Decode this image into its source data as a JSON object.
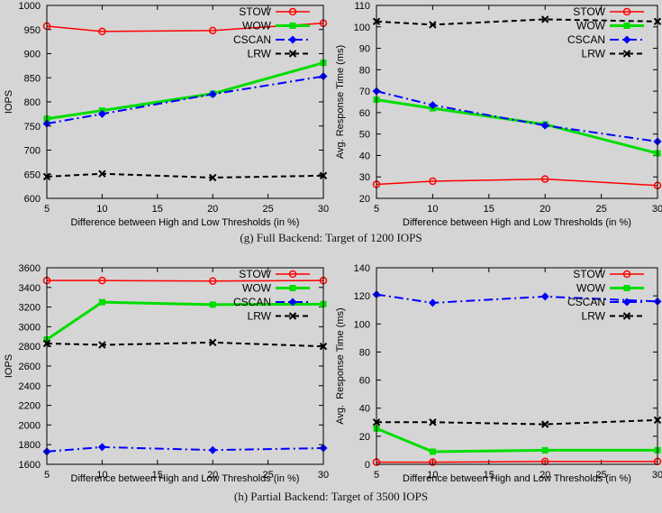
{
  "figure": {
    "background": "#d5d5d5",
    "captions": {
      "g": "(g) Full Backend: Target of 1200 IOPS",
      "h": "(h) Partial Backend: Target of 3500 IOPS"
    }
  },
  "colors": {
    "STOW": "#ff0000",
    "WOW": "#00dd00",
    "CSCAN": "#0000ff",
    "LRW": "#000000"
  },
  "chart_data": [
    {
      "id": "g-iops",
      "type": "line",
      "title": "",
      "xlabel": "Difference between High and Low Thresholds (in %)",
      "ylabel": "IOPS",
      "x": [
        5,
        10,
        20,
        30
      ],
      "xlim": [
        5,
        30
      ],
      "xticks": [
        5,
        10,
        15,
        20,
        25,
        30
      ],
      "ylim": [
        600,
        1000
      ],
      "yticks": [
        600,
        650,
        700,
        750,
        800,
        850,
        900,
        950,
        1000
      ],
      "grid": false,
      "legend_position": "top-right",
      "series": [
        {
          "name": "STOW",
          "values": [
            957,
            946,
            948,
            963
          ],
          "color": "#ff0000",
          "marker": "circle-open",
          "dash": "solid",
          "width": 1.5
        },
        {
          "name": "WOW",
          "values": [
            765,
            782,
            817,
            881
          ],
          "color": "#00dd00",
          "marker": "square",
          "dash": "solid",
          "width": 3
        },
        {
          "name": "CSCAN",
          "values": [
            755,
            775,
            816,
            853
          ],
          "color": "#0000ff",
          "marker": "diamond",
          "dash": "dashdot",
          "width": 2
        },
        {
          "name": "LRW",
          "values": [
            645,
            651,
            643,
            647
          ],
          "color": "#000000",
          "marker": "x",
          "dash": "dashed",
          "width": 2
        }
      ]
    },
    {
      "id": "g-rt",
      "type": "line",
      "title": "",
      "xlabel": "Difference between High and Low Thresholds (in %)",
      "ylabel": "Avg. Response Time (ms)",
      "x": [
        5,
        10,
        20,
        30
      ],
      "xlim": [
        5,
        30
      ],
      "xticks": [
        5,
        10,
        15,
        20,
        25,
        30
      ],
      "ylim": [
        20,
        110
      ],
      "yticks": [
        20,
        30,
        40,
        50,
        60,
        70,
        80,
        90,
        100,
        110
      ],
      "grid": false,
      "legend_position": "top-right",
      "series": [
        {
          "name": "STOW",
          "values": [
            26.5,
            28,
            29,
            26
          ],
          "color": "#ff0000",
          "marker": "circle-open",
          "dash": "solid",
          "width": 1.5
        },
        {
          "name": "WOW",
          "values": [
            66,
            62,
            54.5,
            41
          ],
          "color": "#00dd00",
          "marker": "square",
          "dash": "solid",
          "width": 3
        },
        {
          "name": "CSCAN",
          "values": [
            70,
            63.5,
            54,
            46.5
          ],
          "color": "#0000ff",
          "marker": "diamond",
          "dash": "dashdot",
          "width": 2
        },
        {
          "name": "LRW",
          "values": [
            102.5,
            101,
            103.5,
            102.5
          ],
          "color": "#000000",
          "marker": "x",
          "dash": "dashed",
          "width": 2
        }
      ]
    },
    {
      "id": "h-iops",
      "type": "line",
      "title": "",
      "xlabel": "Difference between High and Low Thresholds (in %)",
      "ylabel": "IOPS",
      "x": [
        5,
        10,
        20,
        30
      ],
      "xlim": [
        5,
        30
      ],
      "xticks": [
        5,
        10,
        15,
        20,
        25,
        30
      ],
      "ylim": [
        1600,
        3600
      ],
      "yticks": [
        1600,
        1800,
        2000,
        2200,
        2400,
        2600,
        2800,
        3000,
        3200,
        3400,
        3600
      ],
      "grid": false,
      "legend_position": "top-right",
      "series": [
        {
          "name": "STOW",
          "values": [
            3470,
            3470,
            3465,
            3470
          ],
          "color": "#ff0000",
          "marker": "circle-open",
          "dash": "solid",
          "width": 1.5
        },
        {
          "name": "WOW",
          "values": [
            2870,
            3250,
            3225,
            3230
          ],
          "color": "#00dd00",
          "marker": "square",
          "dash": "solid",
          "width": 3
        },
        {
          "name": "CSCAN",
          "values": [
            1730,
            1775,
            1745,
            1765
          ],
          "color": "#0000ff",
          "marker": "diamond",
          "dash": "dashdot",
          "width": 2
        },
        {
          "name": "LRW",
          "values": [
            2830,
            2815,
            2840,
            2800
          ],
          "color": "#000000",
          "marker": "x",
          "dash": "dashed",
          "width": 2
        }
      ]
    },
    {
      "id": "h-rt",
      "type": "line",
      "title": "",
      "xlabel": "Difference between High and Low Thresholds (in %)",
      "ylabel": "Avg.  Response Time (ms)",
      "x": [
        5,
        10,
        20,
        30
      ],
      "xlim": [
        5,
        30
      ],
      "xticks": [
        5,
        10,
        15,
        20,
        25,
        30
      ],
      "ylim": [
        0,
        140
      ],
      "yticks": [
        0,
        20,
        40,
        60,
        80,
        100,
        120,
        140
      ],
      "grid": false,
      "legend_position": "top-right",
      "series": [
        {
          "name": "STOW",
          "values": [
            1.5,
            1.5,
            2,
            2
          ],
          "color": "#ff0000",
          "marker": "circle-open",
          "dash": "solid",
          "width": 1.5
        },
        {
          "name": "WOW",
          "values": [
            25.5,
            9,
            10,
            10
          ],
          "color": "#00dd00",
          "marker": "square",
          "dash": "solid",
          "width": 3
        },
        {
          "name": "CSCAN",
          "values": [
            121,
            115,
            119.5,
            116
          ],
          "color": "#0000ff",
          "marker": "diamond",
          "dash": "dashdot",
          "width": 2
        },
        {
          "name": "LRW",
          "values": [
            30,
            30,
            28.5,
            31.5
          ],
          "color": "#000000",
          "marker": "x",
          "dash": "dashed",
          "width": 2
        }
      ]
    }
  ]
}
